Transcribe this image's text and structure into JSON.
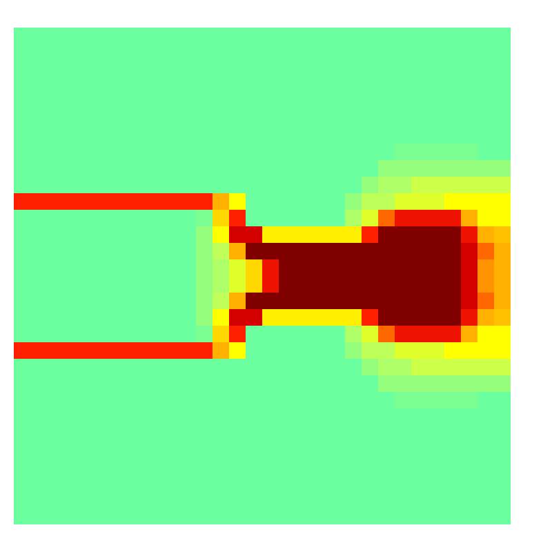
{
  "chart_data": {
    "type": "heatmap",
    "tick_labels": false,
    "zlim": [
      0,
      1
    ],
    "cells": [
      [
        0.5,
        0.5,
        0.5,
        0.5,
        0.5,
        0.5,
        0.5,
        0.5,
        0.5,
        0.5,
        0.5,
        0.5,
        0.5,
        0.5,
        0.5,
        0.5,
        0.5,
        0.5,
        0.5,
        0.5,
        0.5,
        0.5,
        0.5,
        0.5,
        0.5,
        0.5,
        0.5,
        0.5,
        0.5,
        0.5
      ],
      [
        0.5,
        0.5,
        0.5,
        0.5,
        0.5,
        0.5,
        0.5,
        0.5,
        0.5,
        0.5,
        0.5,
        0.5,
        0.5,
        0.5,
        0.5,
        0.5,
        0.5,
        0.5,
        0.5,
        0.5,
        0.5,
        0.5,
        0.5,
        0.5,
        0.5,
        0.5,
        0.5,
        0.5,
        0.5,
        0.5
      ],
      [
        0.5,
        0.5,
        0.5,
        0.5,
        0.5,
        0.5,
        0.5,
        0.5,
        0.5,
        0.5,
        0.5,
        0.5,
        0.5,
        0.5,
        0.5,
        0.5,
        0.5,
        0.5,
        0.5,
        0.5,
        0.5,
        0.5,
        0.5,
        0.5,
        0.5,
        0.5,
        0.5,
        0.5,
        0.5,
        0.5
      ],
      [
        0.5,
        0.5,
        0.5,
        0.5,
        0.5,
        0.5,
        0.5,
        0.5,
        0.5,
        0.5,
        0.5,
        0.5,
        0.5,
        0.5,
        0.5,
        0.5,
        0.5,
        0.5,
        0.5,
        0.5,
        0.5,
        0.5,
        0.5,
        0.5,
        0.5,
        0.5,
        0.5,
        0.5,
        0.5,
        0.5
      ],
      [
        0.5,
        0.5,
        0.5,
        0.5,
        0.5,
        0.5,
        0.5,
        0.5,
        0.5,
        0.5,
        0.5,
        0.5,
        0.5,
        0.5,
        0.5,
        0.5,
        0.5,
        0.5,
        0.5,
        0.5,
        0.5,
        0.5,
        0.5,
        0.5,
        0.5,
        0.5,
        0.5,
        0.5,
        0.5,
        0.5
      ],
      [
        0.5,
        0.5,
        0.5,
        0.5,
        0.5,
        0.5,
        0.5,
        0.5,
        0.5,
        0.5,
        0.5,
        0.5,
        0.5,
        0.5,
        0.5,
        0.5,
        0.5,
        0.5,
        0.5,
        0.5,
        0.5,
        0.5,
        0.5,
        0.5,
        0.5,
        0.5,
        0.5,
        0.5,
        0.5,
        0.5
      ],
      [
        0.5,
        0.5,
        0.5,
        0.5,
        0.5,
        0.5,
        0.5,
        0.5,
        0.5,
        0.5,
        0.5,
        0.5,
        0.5,
        0.5,
        0.5,
        0.5,
        0.5,
        0.5,
        0.5,
        0.5,
        0.5,
        0.5,
        0.5,
        0.5,
        0.5,
        0.5,
        0.5,
        0.5,
        0.5,
        0.5
      ],
      [
        0.5,
        0.5,
        0.5,
        0.5,
        0.5,
        0.5,
        0.5,
        0.5,
        0.5,
        0.5,
        0.5,
        0.5,
        0.5,
        0.5,
        0.5,
        0.5,
        0.5,
        0.5,
        0.5,
        0.5,
        0.5,
        0.5,
        0.5,
        0.52,
        0.52,
        0.52,
        0.52,
        0.52,
        0.5,
        0.5
      ],
      [
        0.5,
        0.5,
        0.5,
        0.5,
        0.5,
        0.5,
        0.5,
        0.5,
        0.5,
        0.5,
        0.5,
        0.5,
        0.5,
        0.5,
        0.5,
        0.5,
        0.5,
        0.5,
        0.5,
        0.5,
        0.5,
        0.5,
        0.55,
        0.55,
        0.55,
        0.55,
        0.55,
        0.55,
        0.55,
        0.55
      ],
      [
        0.5,
        0.5,
        0.5,
        0.5,
        0.5,
        0.5,
        0.5,
        0.5,
        0.5,
        0.5,
        0.5,
        0.5,
        0.5,
        0.5,
        0.5,
        0.5,
        0.5,
        0.5,
        0.5,
        0.5,
        0.5,
        0.55,
        0.58,
        0.58,
        0.62,
        0.62,
        0.62,
        0.62,
        0.62,
        0.62
      ],
      [
        0.9,
        0.9,
        0.9,
        0.9,
        0.9,
        0.9,
        0.9,
        0.9,
        0.9,
        0.9,
        0.9,
        0.9,
        0.8,
        0.7,
        0.5,
        0.5,
        0.5,
        0.5,
        0.5,
        0.5,
        0.55,
        0.6,
        0.6,
        0.65,
        0.65,
        0.65,
        0.7,
        0.7,
        0.7,
        0.7
      ],
      [
        0.5,
        0.5,
        0.5,
        0.5,
        0.5,
        0.5,
        0.5,
        0.5,
        0.5,
        0.5,
        0.5,
        0.52,
        0.75,
        0.9,
        0.5,
        0.5,
        0.5,
        0.5,
        0.5,
        0.5,
        0.58,
        0.65,
        0.85,
        0.92,
        0.92,
        0.92,
        0.92,
        0.8,
        0.7,
        0.7
      ],
      [
        0.5,
        0.5,
        0.5,
        0.5,
        0.5,
        0.5,
        0.5,
        0.5,
        0.5,
        0.5,
        0.5,
        0.55,
        0.7,
        0.95,
        0.95,
        0.72,
        0.72,
        0.72,
        0.72,
        0.72,
        0.72,
        0.9,
        1,
        1,
        1,
        1,
        1,
        0.92,
        0.8,
        0.78
      ],
      [
        0.5,
        0.5,
        0.5,
        0.5,
        0.5,
        0.5,
        0.5,
        0.5,
        0.5,
        0.5,
        0.5,
        0.55,
        0.6,
        0.8,
        1,
        1,
        1,
        1,
        1,
        1,
        1,
        1,
        1,
        1,
        1,
        1,
        1,
        0.95,
        0.85,
        0.8
      ],
      [
        0.5,
        0.5,
        0.5,
        0.5,
        0.5,
        0.5,
        0.5,
        0.5,
        0.5,
        0.5,
        0.5,
        0.55,
        0.58,
        0.65,
        0.75,
        0.92,
        1,
        1,
        1,
        1,
        1,
        1,
        1,
        1,
        1,
        1,
        1,
        0.95,
        0.82,
        0.8
      ],
      [
        0.5,
        0.5,
        0.5,
        0.5,
        0.5,
        0.5,
        0.5,
        0.5,
        0.5,
        0.5,
        0.5,
        0.55,
        0.58,
        0.65,
        0.75,
        0.92,
        1,
        1,
        1,
        1,
        1,
        1,
        1,
        1,
        1,
        1,
        1,
        0.95,
        0.82,
        0.8
      ],
      [
        0.5,
        0.5,
        0.5,
        0.5,
        0.5,
        0.5,
        0.5,
        0.5,
        0.5,
        0.5,
        0.5,
        0.55,
        0.6,
        0.8,
        1,
        1,
        1,
        1,
        1,
        1,
        1,
        1,
        1,
        1,
        1,
        1,
        1,
        0.95,
        0.85,
        0.8
      ],
      [
        0.5,
        0.5,
        0.5,
        0.5,
        0.5,
        0.5,
        0.5,
        0.5,
        0.5,
        0.5,
        0.5,
        0.55,
        0.7,
        0.95,
        0.95,
        0.72,
        0.72,
        0.72,
        0.72,
        0.72,
        0.72,
        0.9,
        1,
        1,
        1,
        1,
        1,
        0.92,
        0.8,
        0.78
      ],
      [
        0.5,
        0.5,
        0.5,
        0.5,
        0.5,
        0.5,
        0.5,
        0.5,
        0.5,
        0.5,
        0.5,
        0.52,
        0.75,
        0.9,
        0.5,
        0.5,
        0.5,
        0.5,
        0.5,
        0.5,
        0.58,
        0.65,
        0.85,
        0.92,
        0.92,
        0.92,
        0.92,
        0.8,
        0.7,
        0.7
      ],
      [
        0.9,
        0.9,
        0.9,
        0.9,
        0.9,
        0.9,
        0.9,
        0.9,
        0.9,
        0.9,
        0.9,
        0.9,
        0.8,
        0.7,
        0.5,
        0.5,
        0.5,
        0.5,
        0.5,
        0.5,
        0.55,
        0.6,
        0.6,
        0.65,
        0.65,
        0.65,
        0.7,
        0.7,
        0.7,
        0.7
      ],
      [
        0.5,
        0.5,
        0.5,
        0.5,
        0.5,
        0.5,
        0.5,
        0.5,
        0.5,
        0.5,
        0.5,
        0.5,
        0.5,
        0.5,
        0.5,
        0.5,
        0.5,
        0.5,
        0.5,
        0.5,
        0.5,
        0.55,
        0.58,
        0.58,
        0.62,
        0.62,
        0.62,
        0.62,
        0.62,
        0.62
      ],
      [
        0.5,
        0.5,
        0.5,
        0.5,
        0.5,
        0.5,
        0.5,
        0.5,
        0.5,
        0.5,
        0.5,
        0.5,
        0.5,
        0.5,
        0.5,
        0.5,
        0.5,
        0.5,
        0.5,
        0.5,
        0.5,
        0.5,
        0.55,
        0.55,
        0.55,
        0.55,
        0.55,
        0.55,
        0.55,
        0.55
      ],
      [
        0.5,
        0.5,
        0.5,
        0.5,
        0.5,
        0.5,
        0.5,
        0.5,
        0.5,
        0.5,
        0.5,
        0.5,
        0.5,
        0.5,
        0.5,
        0.5,
        0.5,
        0.5,
        0.5,
        0.5,
        0.5,
        0.5,
        0.5,
        0.52,
        0.52,
        0.52,
        0.52,
        0.52,
        0.5,
        0.5
      ],
      [
        0.5,
        0.5,
        0.5,
        0.5,
        0.5,
        0.5,
        0.5,
        0.5,
        0.5,
        0.5,
        0.5,
        0.5,
        0.5,
        0.5,
        0.5,
        0.5,
        0.5,
        0.5,
        0.5,
        0.5,
        0.5,
        0.5,
        0.5,
        0.5,
        0.5,
        0.5,
        0.5,
        0.5,
        0.5,
        0.5
      ],
      [
        0.5,
        0.5,
        0.5,
        0.5,
        0.5,
        0.5,
        0.5,
        0.5,
        0.5,
        0.5,
        0.5,
        0.5,
        0.5,
        0.5,
        0.5,
        0.5,
        0.5,
        0.5,
        0.5,
        0.5,
        0.5,
        0.5,
        0.5,
        0.5,
        0.5,
        0.5,
        0.5,
        0.5,
        0.5,
        0.5
      ],
      [
        0.5,
        0.5,
        0.5,
        0.5,
        0.5,
        0.5,
        0.5,
        0.5,
        0.5,
        0.5,
        0.5,
        0.5,
        0.5,
        0.5,
        0.5,
        0.5,
        0.5,
        0.5,
        0.5,
        0.5,
        0.5,
        0.5,
        0.5,
        0.5,
        0.5,
        0.5,
        0.5,
        0.5,
        0.5,
        0.5
      ],
      [
        0.5,
        0.5,
        0.5,
        0.5,
        0.5,
        0.5,
        0.5,
        0.5,
        0.5,
        0.5,
        0.5,
        0.5,
        0.5,
        0.5,
        0.5,
        0.5,
        0.5,
        0.5,
        0.5,
        0.5,
        0.5,
        0.5,
        0.5,
        0.5,
        0.5,
        0.5,
        0.5,
        0.5,
        0.5,
        0.5
      ],
      [
        0.5,
        0.5,
        0.5,
        0.5,
        0.5,
        0.5,
        0.5,
        0.5,
        0.5,
        0.5,
        0.5,
        0.5,
        0.5,
        0.5,
        0.5,
        0.5,
        0.5,
        0.5,
        0.5,
        0.5,
        0.5,
        0.5,
        0.5,
        0.5,
        0.5,
        0.5,
        0.5,
        0.5,
        0.5,
        0.5
      ],
      [
        0.5,
        0.5,
        0.5,
        0.5,
        0.5,
        0.5,
        0.5,
        0.5,
        0.5,
        0.5,
        0.5,
        0.5,
        0.5,
        0.5,
        0.5,
        0.5,
        0.5,
        0.5,
        0.5,
        0.5,
        0.5,
        0.5,
        0.5,
        0.5,
        0.5,
        0.5,
        0.5,
        0.5,
        0.5,
        0.5
      ],
      [
        0.5,
        0.5,
        0.5,
        0.5,
        0.5,
        0.5,
        0.5,
        0.5,
        0.5,
        0.5,
        0.5,
        0.5,
        0.5,
        0.5,
        0.5,
        0.5,
        0.5,
        0.5,
        0.5,
        0.5,
        0.5,
        0.5,
        0.5,
        0.5,
        0.5,
        0.5,
        0.5,
        0.5,
        0.5,
        0.5
      ]
    ]
  }
}
